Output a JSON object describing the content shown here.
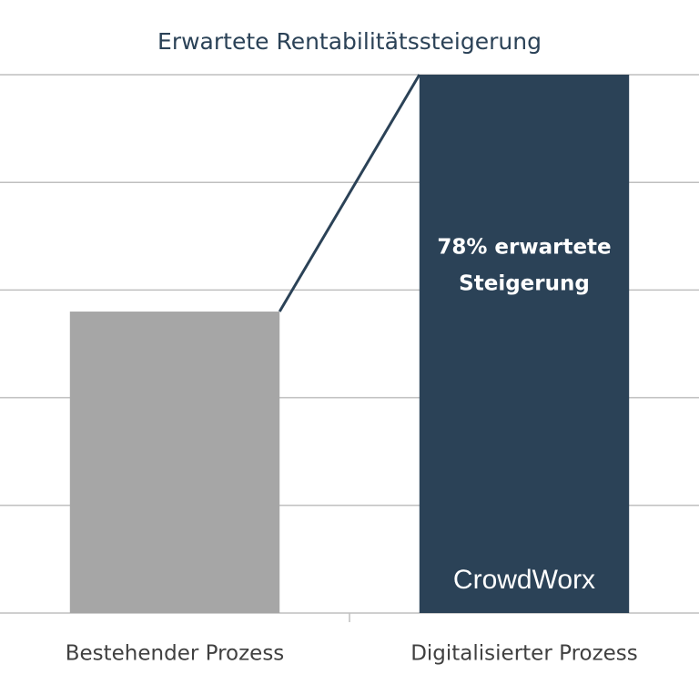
{
  "chart_data": {
    "type": "bar",
    "title": "Erwartete Rentabilitätssteigerung",
    "categories": [
      "Bestehender Prozess",
      "Digitalisierter Prozess"
    ],
    "values": [
      2.8,
      5
    ],
    "colors": [
      "#a6a6a6",
      "#2b4257"
    ],
    "ylim": [
      0,
      5
    ],
    "yticks": [
      0,
      1,
      2,
      3,
      4,
      5
    ],
    "grid": true,
    "annotation": [
      "78% erwartete",
      "Steigerung"
    ],
    "logo": "CrowdWorx"
  }
}
